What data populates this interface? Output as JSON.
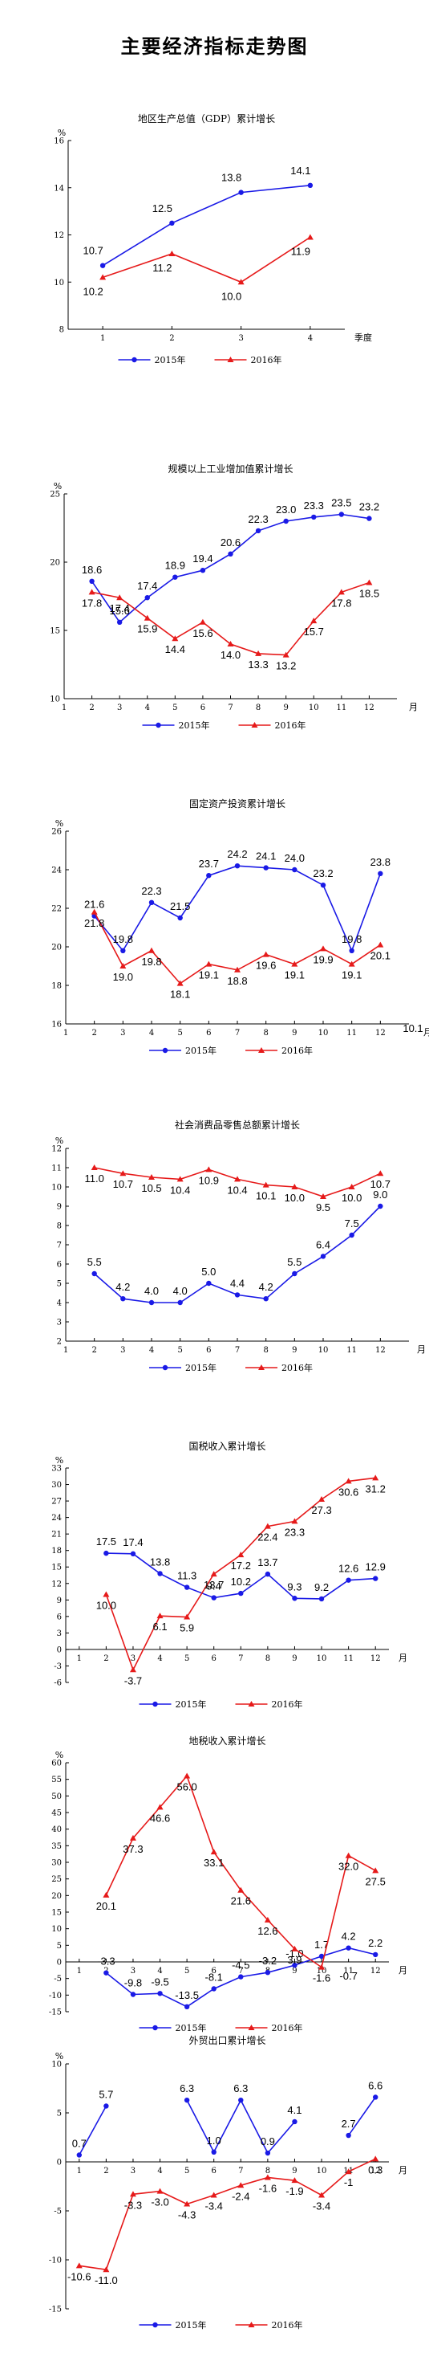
{
  "page": {
    "title": "主要经济指标走势图"
  },
  "style": {
    "series_colors": [
      "#1a1ae6",
      "#e61a1a"
    ],
    "axis_color": "#000000"
  },
  "chart_data": [
    {
      "type": "line",
      "title": "地区生产总值（GDP）累计增长",
      "y_unit": "%",
      "x_unit": "季度",
      "ylim": [
        8,
        16
      ],
      "yticks": [
        8,
        10,
        12,
        14,
        16
      ],
      "xlim": [
        0.5,
        4.5
      ],
      "xticks": [
        1,
        2,
        3,
        4
      ],
      "x_tick_labels": [
        "1",
        "2",
        "3",
        "4"
      ],
      "legend": "bottom",
      "series": [
        {
          "name": "2015年",
          "marker": "circle",
          "x": [
            1,
            2,
            3,
            4
          ],
          "y": [
            10.7,
            12.5,
            13.8,
            14.1
          ],
          "labels": [
            "10.7",
            "12.5",
            "13.8",
            "14.1"
          ]
        },
        {
          "name": "2016年",
          "marker": "triangle",
          "x": [
            1,
            2,
            3,
            4
          ],
          "y": [
            10.2,
            11.2,
            10.0,
            11.9
          ],
          "labels": [
            "10.2",
            "11.2",
            "10.0",
            "11.9"
          ]
        }
      ]
    },
    {
      "type": "line",
      "title": "规模以上工业增加值累计增长",
      "y_unit": "%",
      "x_unit": "月",
      "ylim": [
        10,
        25
      ],
      "yticks": [
        10,
        15,
        20,
        25
      ],
      "xlim": [
        1,
        13
      ],
      "xticks": [
        1,
        2,
        3,
        4,
        5,
        6,
        7,
        8,
        9,
        10,
        11,
        12
      ],
      "x_tick_labels": [
        "1",
        "2",
        "3",
        "4",
        "5",
        "6",
        "7",
        "8",
        "9",
        "10",
        "11",
        "12"
      ],
      "legend": "bottom",
      "series": [
        {
          "name": "2015年",
          "marker": "circle",
          "x": [
            2,
            3,
            4,
            5,
            6,
            7,
            8,
            9,
            10,
            11,
            12
          ],
          "y": [
            18.6,
            15.6,
            17.4,
            18.9,
            19.4,
            20.6,
            22.3,
            23.0,
            23.3,
            23.5,
            23.2
          ],
          "labels": [
            "18.6",
            "15.6",
            "17.4",
            "18.9",
            "19.4",
            "20.6",
            "22.3",
            "23.0",
            "23.3",
            "23.5",
            "23.2"
          ]
        },
        {
          "name": "2016年",
          "marker": "triangle",
          "x": [
            2,
            3,
            4,
            5,
            6,
            7,
            8,
            9,
            10,
            11,
            12
          ],
          "y": [
            17.8,
            17.4,
            15.9,
            14.4,
            15.6,
            14.0,
            13.3,
            13.2,
            15.7,
            17.8,
            18.5
          ],
          "labels": [
            "17.8",
            "17.4",
            "15.9",
            "14.4",
            "15.6",
            "14.0",
            "13.3",
            "13.2",
            "15.7",
            "17.8",
            "18.5"
          ]
        }
      ]
    },
    {
      "type": "line",
      "title": "固定资产投资累计增长",
      "y_unit": "%",
      "x_unit": "月",
      "ylim": [
        16,
        26
      ],
      "yticks": [
        16,
        18,
        20,
        22,
        24,
        26
      ],
      "xlim": [
        1,
        13
      ],
      "xticks": [
        1,
        2,
        3,
        4,
        5,
        6,
        7,
        8,
        9,
        10,
        11,
        12
      ],
      "x_tick_labels": [
        "1",
        "2",
        "3",
        "4",
        "5",
        "6",
        "7",
        "8",
        "9",
        "10",
        "11",
        "12"
      ],
      "legend": "bottom",
      "series": [
        {
          "name": "2015年",
          "marker": "circle",
          "x": [
            2,
            3,
            4,
            5,
            6,
            7,
            8,
            9,
            10,
            11,
            12
          ],
          "y": [
            21.6,
            19.8,
            22.3,
            21.5,
            23.7,
            24.2,
            24.1,
            24.0,
            23.2,
            19.8,
            23.8
          ],
          "labels": [
            "21.6",
            "19.8",
            "22.3",
            "21.5",
            "23.7",
            "24.2",
            "24.1",
            "24.0",
            "23.2",
            "19.8",
            "23.8"
          ]
        },
        {
          "name": "2016年",
          "marker": "triangle",
          "x": [
            2,
            3,
            4,
            5,
            6,
            7,
            8,
            9,
            10,
            11,
            12
          ],
          "y": [
            21.8,
            19.0,
            19.8,
            18.1,
            19.1,
            18.8,
            19.6,
            19.1,
            19.9,
            19.1,
            20.1
          ],
          "labels": [
            "21.8",
            "19.0",
            "19.8",
            "18.1",
            "19.1",
            "18.8",
            "19.6",
            "19.1",
            "19.9",
            "19.1",
            "20.1"
          ]
        }
      ],
      "annotations": [
        "10.1"
      ]
    },
    {
      "type": "line",
      "title": "社会消费品零售总额累计增长",
      "y_unit": "%",
      "x_unit": "月",
      "ylim": [
        2,
        12
      ],
      "yticks": [
        2,
        3,
        4,
        5,
        6,
        7,
        8,
        9,
        10,
        11,
        12
      ],
      "xlim": [
        1,
        13
      ],
      "xticks": [
        1,
        2,
        3,
        4,
        5,
        6,
        7,
        8,
        9,
        10,
        11,
        12
      ],
      "x_tick_labels": [
        "1",
        "2",
        "3",
        "4",
        "5",
        "6",
        "7",
        "8",
        "9",
        "10",
        "11",
        "12"
      ],
      "legend": "bottom",
      "series": [
        {
          "name": "2015年",
          "marker": "circle",
          "x": [
            2,
            3,
            4,
            5,
            6,
            7,
            8,
            9,
            10,
            11,
            12
          ],
          "y": [
            5.5,
            4.2,
            4.0,
            4.0,
            5.0,
            4.4,
            4.2,
            5.5,
            6.4,
            7.5,
            9.0
          ],
          "labels": [
            "5.5",
            "4.2",
            "4.0",
            "4.0",
            "5.0",
            "4.4",
            "4.2",
            "5.5",
            "6.4",
            "7.5",
            "9.0"
          ]
        },
        {
          "name": "2016年",
          "marker": "triangle",
          "x": [
            2,
            3,
            4,
            5,
            6,
            7,
            8,
            9,
            10,
            11,
            12
          ],
          "y": [
            11.0,
            10.7,
            10.5,
            10.4,
            10.9,
            10.4,
            10.1,
            10.0,
            9.5,
            10.0,
            10.7
          ],
          "labels": [
            "11.0",
            "10.7",
            "10.5",
            "10.4",
            "10.9",
            "10.4",
            "10.1",
            "10.0",
            "9.5",
            "10.0",
            "10.7"
          ]
        }
      ]
    },
    {
      "type": "line",
      "title": "国税收入累计增长",
      "y_unit": "%",
      "x_unit": "月",
      "ylim": [
        -6,
        33
      ],
      "yticks": [
        -6,
        -3,
        0,
        3,
        6,
        9,
        12,
        15,
        18,
        21,
        24,
        27,
        30,
        33
      ],
      "tick_font": 9,
      "xlim": [
        0.5,
        12.5
      ],
      "xticks": [
        1,
        2,
        3,
        4,
        5,
        6,
        7,
        8,
        9,
        10,
        11,
        12
      ],
      "x_tick_labels": [
        "1",
        "2",
        "3",
        "4",
        "5",
        "6",
        "7",
        "8",
        "9",
        "10",
        "11",
        "12"
      ],
      "legend": "bottom",
      "series": [
        {
          "name": "2015年",
          "marker": "circle",
          "x": [
            2,
            3,
            4,
            5,
            6,
            7,
            8,
            9,
            10,
            11,
            12
          ],
          "y": [
            17.5,
            17.4,
            13.8,
            11.3,
            9.4,
            10.2,
            13.7,
            9.3,
            9.2,
            12.6,
            12.9
          ],
          "labels": [
            "17.5",
            "17.4",
            "13.8",
            "11.3",
            "9.4",
            "10.2",
            "13.7",
            "9.3",
            "9.2",
            "12.6",
            "12.9"
          ]
        },
        {
          "name": "2016年",
          "marker": "triangle",
          "x": [
            2,
            3,
            4,
            5,
            6,
            7,
            8,
            9,
            10,
            11,
            12
          ],
          "y": [
            10.0,
            -3.7,
            6.1,
            5.9,
            13.7,
            17.2,
            22.4,
            23.3,
            27.3,
            30.6,
            31.2
          ],
          "labels": [
            "10.0",
            "-3.7",
            "6.1",
            "5.9",
            "13.7",
            "17.2",
            "22.4",
            "23.3",
            "27.3",
            "30.6",
            "31.2"
          ]
        }
      ]
    },
    {
      "type": "line",
      "title": "地税收入累计增长",
      "y_unit": "%",
      "x_unit": "月",
      "ylim": [
        -15,
        60
      ],
      "yticks": [
        -15,
        -10,
        -5,
        0,
        5,
        10,
        15,
        20,
        25,
        30,
        35,
        40,
        45,
        50,
        55,
        60
      ],
      "tick_font": 9,
      "xlim": [
        0.5,
        12.5
      ],
      "xticks": [
        1,
        2,
        3,
        4,
        5,
        6,
        7,
        8,
        9,
        10,
        11,
        12
      ],
      "x_tick_labels": [
        "1",
        "2",
        "3",
        "4",
        "5",
        "6",
        "7",
        "8",
        "9",
        "10",
        "11",
        "12"
      ],
      "legend": "bottom",
      "series": [
        {
          "name": "2015年",
          "marker": "circle",
          "x": [
            2,
            3,
            4,
            5,
            6,
            7,
            8,
            9,
            10,
            11,
            12
          ],
          "y": [
            -3.3,
            -9.8,
            -9.5,
            -13.5,
            -8.1,
            -4.5,
            -3.2,
            -1.0,
            1.7,
            4.2,
            2.2
          ],
          "labels": [
            "-3.3",
            "-9.8",
            "-9.5",
            "-13.5",
            "-8.1",
            "-4.5",
            "-3.2",
            "-1.0",
            "1.7",
            "4.2",
            "2.2"
          ]
        },
        {
          "name": "2016年",
          "marker": "triangle",
          "x": [
            2,
            3,
            4,
            5,
            6,
            7,
            8,
            9,
            10,
            11,
            12
          ],
          "y": [
            20.1,
            37.3,
            46.6,
            56.0,
            33.1,
            21.6,
            12.6,
            3.9,
            -1.6,
            32.0,
            27.5
          ],
          "labels": [
            "20.1",
            "37.3",
            "46.6",
            "56.0",
            "33.1",
            "21.6",
            "12.6",
            "3.9",
            "-1.6",
            "32.0",
            "27.5"
          ]
        }
      ],
      "annotations": [
        "-0.7"
      ]
    },
    {
      "type": "line",
      "title": "外贸出口累计增长",
      "y_unit": "%",
      "x_unit": "月",
      "ylim": [
        -15,
        10
      ],
      "yticks": [
        -15,
        -10,
        -5,
        0,
        5,
        10
      ],
      "xlim": [
        0.5,
        12.5
      ],
      "xticks": [
        1,
        2,
        3,
        4,
        5,
        6,
        7,
        8,
        9,
        10,
        11,
        12
      ],
      "x_tick_labels": [
        "1",
        "2",
        "3",
        "4",
        "5",
        "6",
        "7",
        "8",
        "9",
        "10",
        "11",
        "12"
      ],
      "legend": "bottom",
      "series": [
        {
          "name": "2015年",
          "marker": "circle",
          "x": [
            1,
            2,
            null,
            5,
            6,
            7,
            8,
            9,
            null,
            11,
            12
          ],
          "y": [
            0.7,
            5.7,
            null,
            6.3,
            1.0,
            6.3,
            0.9,
            4.1,
            null,
            2.7,
            6.6
          ],
          "labels": [
            "0.7",
            "5.7",
            "",
            "6.3",
            "1.0",
            "6.3",
            "0.9",
            "4.1",
            "",
            "2.7",
            "6.6"
          ]
        },
        {
          "name": "2016年",
          "marker": "triangle",
          "x": [
            1,
            2,
            3,
            4,
            5,
            6,
            7,
            8,
            9,
            10,
            11,
            12
          ],
          "y": [
            -10.6,
            -11.0,
            -3.3,
            -3.0,
            -4.3,
            -3.4,
            -2.4,
            -1.6,
            -1.9,
            -3.4,
            -1,
            0.3
          ],
          "labels": [
            "-10.6",
            "-11.0",
            "-3.3",
            "-3.0",
            "-4.3",
            "-3.4",
            "-2.4",
            "-1.6",
            "-1.9",
            "-3.4",
            "-1",
            "0.3"
          ]
        }
      ]
    }
  ]
}
